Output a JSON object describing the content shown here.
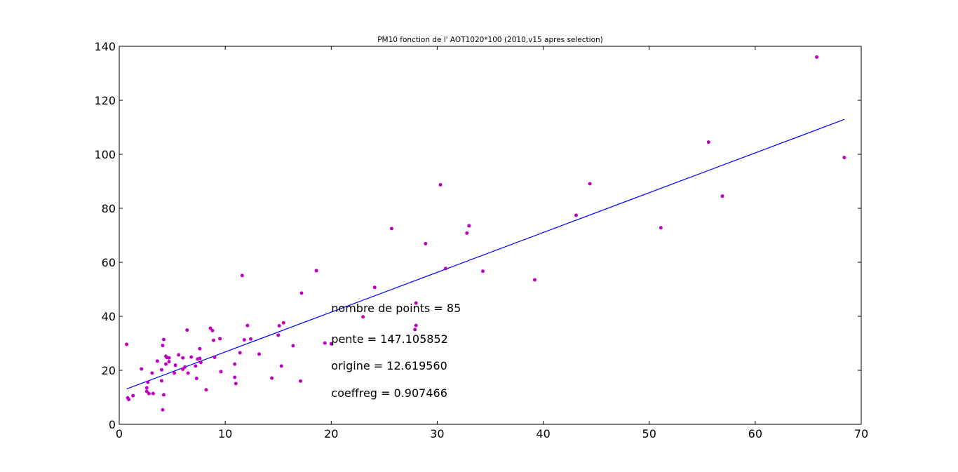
{
  "chart_data": {
    "type": "scatter",
    "title": "PM10 fonction de l' AOT1020*100 (2010,v15 apres selection)",
    "xlabel": "",
    "ylabel": "",
    "xlim": [
      0,
      70
    ],
    "ylim": [
      0,
      140
    ],
    "x_ticks": [
      0,
      10,
      20,
      30,
      40,
      50,
      60,
      70
    ],
    "y_ticks": [
      0,
      20,
      40,
      60,
      80,
      100,
      120,
      140
    ],
    "grid": false,
    "point_color": "#bf00bf",
    "line_color": "#0000ff",
    "points": [
      [
        0.7,
        29.6
      ],
      [
        0.8,
        9.8
      ],
      [
        0.9,
        9.2
      ],
      [
        1.3,
        10.6
      ],
      [
        2.1,
        20.5
      ],
      [
        2.6,
        13.5
      ],
      [
        2.6,
        12.2
      ],
      [
        2.7,
        15.6
      ],
      [
        2.8,
        11.4
      ],
      [
        3.1,
        19.0
      ],
      [
        3.2,
        11.4
      ],
      [
        3.6,
        23.4
      ],
      [
        4.0,
        20.2
      ],
      [
        4.0,
        16.1
      ],
      [
        4.1,
        29.2
      ],
      [
        4.1,
        5.4
      ],
      [
        4.2,
        10.9
      ],
      [
        4.2,
        31.4
      ],
      [
        4.4,
        25.2
      ],
      [
        4.4,
        22.3
      ],
      [
        4.5,
        24.7
      ],
      [
        4.7,
        23.2
      ],
      [
        4.7,
        24.6
      ],
      [
        5.2,
        19.0
      ],
      [
        5.3,
        21.9
      ],
      [
        5.6,
        25.7
      ],
      [
        6.0,
        24.6
      ],
      [
        6.0,
        20.4
      ],
      [
        6.2,
        21.2
      ],
      [
        6.4,
        34.9
      ],
      [
        6.5,
        19.0
      ],
      [
        6.8,
        24.9
      ],
      [
        7.2,
        21.6
      ],
      [
        7.3,
        17.0
      ],
      [
        7.4,
        24.2
      ],
      [
        7.6,
        24.4
      ],
      [
        7.6,
        28.0
      ],
      [
        7.7,
        22.9
      ],
      [
        8.2,
        12.8
      ],
      [
        8.6,
        35.6
      ],
      [
        8.8,
        34.7
      ],
      [
        8.9,
        31.1
      ],
      [
        9.0,
        24.8
      ],
      [
        9.5,
        31.7
      ],
      [
        9.6,
        19.5
      ],
      [
        10.9,
        22.3
      ],
      [
        10.9,
        17.4
      ],
      [
        11.0,
        15.1
      ],
      [
        11.4,
        26.5
      ],
      [
        11.6,
        55.1
      ],
      [
        11.8,
        31.3
      ],
      [
        12.1,
        36.6
      ],
      [
        12.4,
        31.6
      ],
      [
        13.2,
        26.0
      ],
      [
        14.4,
        17.1
      ],
      [
        15.0,
        33.0
      ],
      [
        15.1,
        36.5
      ],
      [
        15.3,
        21.6
      ],
      [
        15.5,
        37.6
      ],
      [
        16.4,
        29.1
      ],
      [
        17.1,
        16.0
      ],
      [
        17.2,
        48.6
      ],
      [
        18.6,
        56.9
      ],
      [
        19.4,
        30.1
      ],
      [
        20.0,
        29.8
      ],
      [
        23.0,
        39.8
      ],
      [
        24.1,
        50.7
      ],
      [
        25.7,
        72.5
      ],
      [
        27.9,
        35.1
      ],
      [
        28.0,
        44.9
      ],
      [
        28.0,
        36.6
      ],
      [
        28.9,
        66.9
      ],
      [
        30.3,
        88.7
      ],
      [
        30.8,
        57.7
      ],
      [
        32.8,
        70.8
      ],
      [
        33.0,
        73.5
      ],
      [
        34.3,
        56.7
      ],
      [
        39.2,
        53.5
      ],
      [
        43.1,
        77.4
      ],
      [
        44.4,
        89.1
      ],
      [
        51.1,
        72.8
      ],
      [
        55.6,
        104.5
      ],
      [
        56.9,
        84.5
      ],
      [
        65.8,
        136.0
      ],
      [
        68.4,
        98.8
      ]
    ],
    "regression_line": {
      "x": [
        0.7,
        68.4
      ],
      "y": [
        13.1,
        112.9
      ]
    },
    "annotations": [
      "nombre de points = 85",
      "pente = 147.105852",
      "origine = 12.619560",
      "coeffreg = 0.907466"
    ]
  }
}
